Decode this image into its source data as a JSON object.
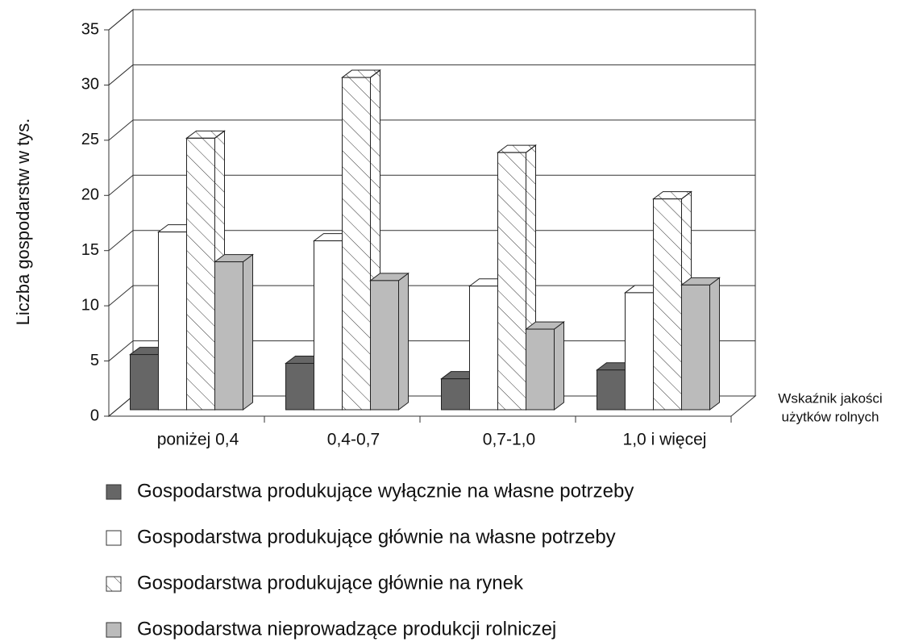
{
  "chart_data": {
    "type": "bar3d",
    "y_label": "Liczba gospodarstw w tys.",
    "x_label": [
      "Wskaźnik jakości",
      "użytków rolnych"
    ],
    "categories": [
      "poniżej 0,4",
      "0,4-0,7",
      "0,7-1,0",
      "1,0 i więcej"
    ],
    "series": [
      {
        "name": "Gospodarstwa produkujące wyłącznie na własne potrzeby",
        "color": "#666666",
        "values": [
          5.0,
          4.2,
          2.8,
          3.6
        ]
      },
      {
        "name": "Gospodarstwa produkujące głównie na własne potrzeby",
        "color": "#ffffff",
        "values": [
          16.1,
          15.3,
          11.2,
          10.6
        ]
      },
      {
        "name": "Gospodarstwa produkujące głównie na rynek",
        "color": "#ffffff",
        "hatch": true,
        "values": [
          24.6,
          30.1,
          23.3,
          19.1
        ]
      },
      {
        "name": "Gospodarstwa nieprowadzące produkcji rolniczej",
        "color": "#bbbbbb",
        "values": [
          13.4,
          11.7,
          7.3,
          11.3
        ]
      }
    ],
    "ylim": [
      0,
      35
    ],
    "yticks": [
      0,
      5,
      10,
      15,
      20,
      25,
      30,
      35
    ],
    "grid": true
  }
}
